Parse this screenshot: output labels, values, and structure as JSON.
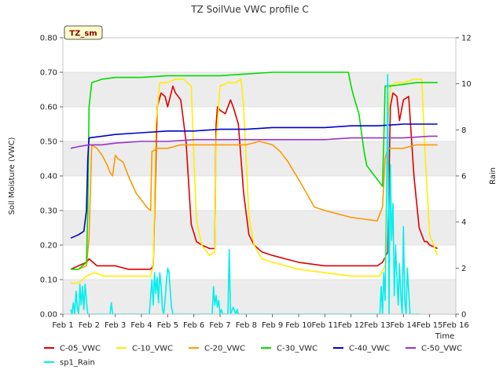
{
  "chart_data": {
    "type": "line",
    "title": "TZ SoilVue VWC profile C",
    "badge": "TZ_sm",
    "xlabel": "Time",
    "ylabel": "Soil Moisture (VWC)",
    "ylabel_right": "Rain",
    "xlim": [
      1,
      16
    ],
    "ylim": [
      0,
      0.8
    ],
    "ylim_right": [
      0,
      12
    ],
    "x_ticks": [
      1,
      2,
      3,
      4,
      5,
      6,
      7,
      8,
      9,
      10,
      11,
      12,
      13,
      14,
      15,
      16
    ],
    "x_tick_labels": [
      "Feb 1",
      "Feb 2",
      "Feb 3",
      "Feb 4",
      "Feb 5",
      "Feb 6",
      "Feb 7",
      "Feb 8",
      "Feb 9",
      "Feb 10",
      "Feb 11",
      "Feb 12",
      "Feb 13",
      "Feb 14",
      "Feb 15",
      "Feb 16"
    ],
    "y_ticks": [
      0,
      0.1,
      0.2,
      0.3,
      0.4,
      0.5,
      0.6,
      0.7,
      0.8
    ],
    "y_tick_labels": [
      "0.00",
      "0.10",
      "0.20",
      "0.30",
      "0.40",
      "0.50",
      "0.60",
      "0.70",
      "0.80"
    ],
    "y_ticks_right": [
      0,
      2,
      4,
      6,
      8,
      10,
      12
    ],
    "y_tick_labels_right": [
      "0",
      "2",
      "4",
      "6",
      "8",
      "10",
      "12"
    ],
    "series": [
      {
        "name": "C-05_VWC",
        "color": "#dd0000",
        "axis": "left",
        "x": [
          1.3,
          1.6,
          1.9,
          2.0,
          2.3,
          2.6,
          3.0,
          3.5,
          4.0,
          4.35,
          4.45,
          4.6,
          4.75,
          4.9,
          5.0,
          5.2,
          5.3,
          5.5,
          5.7,
          5.9,
          6.1,
          6.3,
          6.6,
          6.8,
          6.85,
          6.9,
          7.0,
          7.2,
          7.4,
          7.5,
          7.7,
          7.9,
          8.1,
          8.3,
          8.6,
          9.0,
          9.5,
          10.0,
          11.0,
          12.0,
          12.8,
          13.0,
          13.2,
          13.4,
          13.5,
          13.6,
          13.75,
          13.85,
          14.0,
          14.2,
          14.4,
          14.6,
          14.8,
          14.9,
          15.0,
          15.3
        ],
        "y": [
          0.13,
          0.14,
          0.15,
          0.16,
          0.14,
          0.14,
          0.14,
          0.13,
          0.13,
          0.13,
          0.14,
          0.6,
          0.64,
          0.63,
          0.6,
          0.66,
          0.64,
          0.62,
          0.5,
          0.26,
          0.21,
          0.2,
          0.19,
          0.19,
          0.55,
          0.6,
          0.59,
          0.58,
          0.62,
          0.6,
          0.55,
          0.35,
          0.23,
          0.2,
          0.18,
          0.17,
          0.16,
          0.15,
          0.14,
          0.14,
          0.14,
          0.14,
          0.15,
          0.18,
          0.6,
          0.64,
          0.63,
          0.56,
          0.62,
          0.63,
          0.4,
          0.25,
          0.21,
          0.21,
          0.2,
          0.19
        ]
      },
      {
        "name": "C-10_VWC",
        "color": "#ffee00",
        "axis": "left",
        "x": [
          1.3,
          1.6,
          1.9,
          2.2,
          2.6,
          3.0,
          3.5,
          4.0,
          4.35,
          4.45,
          4.55,
          4.7,
          5.0,
          5.3,
          5.6,
          5.9,
          6.0,
          6.1,
          6.3,
          6.6,
          6.8,
          6.85,
          7.0,
          7.3,
          7.6,
          7.8,
          7.9,
          8.1,
          8.3,
          8.6,
          9.0,
          9.5,
          10.0,
          11.0,
          12.0,
          12.8,
          13.1,
          13.3,
          13.4,
          13.5,
          13.7,
          14.0,
          14.4,
          14.7,
          14.8,
          15.0,
          15.3
        ],
        "y": [
          0.09,
          0.09,
          0.11,
          0.12,
          0.11,
          0.11,
          0.11,
          0.11,
          0.11,
          0.14,
          0.55,
          0.67,
          0.67,
          0.68,
          0.68,
          0.66,
          0.45,
          0.27,
          0.2,
          0.17,
          0.18,
          0.5,
          0.66,
          0.67,
          0.67,
          0.68,
          0.6,
          0.28,
          0.2,
          0.16,
          0.15,
          0.14,
          0.13,
          0.12,
          0.11,
          0.11,
          0.11,
          0.14,
          0.55,
          0.66,
          0.67,
          0.67,
          0.68,
          0.68,
          0.5,
          0.23,
          0.17
        ]
      },
      {
        "name": "C-20_VWC",
        "color": "#ff9900",
        "axis": "left",
        "x": [
          1.3,
          1.6,
          1.9,
          2.0,
          2.1,
          2.3,
          2.5,
          2.7,
          2.8,
          2.9,
          3.0,
          3.1,
          3.3,
          3.5,
          3.8,
          4.0,
          4.2,
          4.35,
          4.4,
          4.6,
          5.0,
          5.5,
          6.0,
          6.5,
          7.0,
          7.5,
          8.0,
          8.5,
          9.0,
          9.3,
          9.6,
          10.0,
          10.3,
          10.6,
          11.0,
          11.5,
          12.0,
          12.5,
          13.0,
          13.2,
          13.3,
          13.4,
          13.5,
          14.0,
          14.5,
          15.0,
          15.3
        ],
        "y": [
          0.13,
          0.13,
          0.14,
          0.22,
          0.49,
          0.48,
          0.46,
          0.43,
          0.41,
          0.4,
          0.46,
          0.45,
          0.44,
          0.4,
          0.35,
          0.33,
          0.31,
          0.3,
          0.47,
          0.48,
          0.48,
          0.49,
          0.49,
          0.49,
          0.49,
          0.49,
          0.49,
          0.5,
          0.49,
          0.47,
          0.44,
          0.39,
          0.35,
          0.31,
          0.3,
          0.29,
          0.28,
          0.275,
          0.27,
          0.31,
          0.45,
          0.48,
          0.48,
          0.48,
          0.49,
          0.49,
          0.49
        ]
      },
      {
        "name": "C-30_VWC",
        "color": "#00dd00",
        "axis": "left",
        "x": [
          1.3,
          1.6,
          1.9,
          1.95,
          2.0,
          2.1,
          2.5,
          3.0,
          4.0,
          5.0,
          6.0,
          7.0,
          8.0,
          9.0,
          10.0,
          11.0,
          11.9,
          12.0,
          12.1,
          12.3,
          12.5,
          12.6,
          12.8,
          13.0,
          13.2,
          13.25,
          13.3,
          13.5,
          14.0,
          14.5,
          15.0,
          15.3
        ],
        "y": [
          0.13,
          0.13,
          0.15,
          0.3,
          0.6,
          0.67,
          0.68,
          0.685,
          0.685,
          0.69,
          0.69,
          0.69,
          0.695,
          0.7,
          0.7,
          0.7,
          0.7,
          0.66,
          0.63,
          0.58,
          0.47,
          0.43,
          0.41,
          0.39,
          0.37,
          0.5,
          0.66,
          0.66,
          0.665,
          0.67,
          0.67,
          0.67
        ]
      },
      {
        "name": "C-40_VWC",
        "color": "#0000cc",
        "axis": "left",
        "x": [
          1.3,
          1.6,
          1.8,
          1.9,
          1.95,
          2.0,
          2.5,
          3.0,
          4.0,
          5.0,
          6.0,
          7.0,
          8.0,
          9.0,
          10.0,
          11.0,
          12.0,
          13.0,
          14.0,
          14.5,
          15.0,
          15.3
        ],
        "y": [
          0.22,
          0.23,
          0.24,
          0.3,
          0.45,
          0.51,
          0.515,
          0.52,
          0.525,
          0.53,
          0.53,
          0.535,
          0.535,
          0.54,
          0.54,
          0.54,
          0.545,
          0.545,
          0.55,
          0.55,
          0.55,
          0.55
        ]
      },
      {
        "name": "C-50_VWC",
        "color": "#9933cc",
        "axis": "left",
        "x": [
          1.3,
          1.6,
          2.0,
          2.5,
          3.0,
          4.0,
          5.0,
          6.0,
          7.0,
          8.0,
          9.0,
          10.0,
          11.0,
          12.0,
          13.0,
          14.0,
          15.0,
          15.3
        ],
        "y": [
          0.48,
          0.485,
          0.49,
          0.49,
          0.495,
          0.5,
          0.5,
          0.505,
          0.505,
          0.505,
          0.505,
          0.505,
          0.505,
          0.51,
          0.51,
          0.51,
          0.515,
          0.515
        ]
      },
      {
        "name": "sp1_Rain",
        "color": "#00eeee",
        "axis": "right",
        "x": [
          1.3,
          1.35,
          1.4,
          1.45,
          1.5,
          1.55,
          1.6,
          1.65,
          1.7,
          1.75,
          1.8,
          1.85,
          1.9,
          1.95,
          2.0,
          2.1,
          2.8,
          2.85,
          2.9,
          2.95,
          3.0,
          4.3,
          4.35,
          4.4,
          4.45,
          4.5,
          4.55,
          4.6,
          4.65,
          4.7,
          4.75,
          4.8,
          4.85,
          4.9,
          4.95,
          5.0,
          5.05,
          5.1,
          5.15,
          5.2,
          5.25,
          5.3,
          6.7,
          6.75,
          6.8,
          6.85,
          6.9,
          6.95,
          7.0,
          7.05,
          7.1,
          7.2,
          7.3,
          7.35,
          7.4,
          7.5,
          7.6,
          7.65,
          7.7,
          7.8,
          12.9,
          13.1,
          13.15,
          13.2,
          13.25,
          13.3,
          13.35,
          13.4,
          13.45,
          13.5,
          13.55,
          13.6,
          13.65,
          13.7,
          13.75,
          13.8,
          13.85,
          13.9,
          13.95,
          14.0,
          14.05,
          14.1,
          14.15,
          14.2,
          14.25,
          14.3,
          14.35,
          14.4,
          14.45,
          14.5,
          14.6
        ],
        "y": [
          0.2,
          0,
          0.5,
          0,
          1.0,
          0.3,
          0,
          1.3,
          0.4,
          1.2,
          0.2,
          1.3,
          0.6,
          0,
          0,
          0,
          0,
          0.5,
          0,
          0,
          0,
          0,
          0.8,
          1.5,
          0.4,
          1.8,
          0.9,
          1.6,
          0.5,
          1.8,
          1.2,
          0.2,
          0,
          0.6,
          1.4,
          2.0,
          1.8,
          1.0,
          0.3,
          0,
          0,
          0,
          0,
          1.2,
          0.4,
          0.8,
          0.3,
          0.6,
          0,
          0.2,
          0,
          0,
          0,
          2.8,
          0,
          0.3,
          0,
          0.2,
          0,
          0,
          0,
          0,
          1.2,
          0,
          1.8,
          0.6,
          4.5,
          10.4,
          0,
          6.5,
          3.2,
          4.8,
          0.8,
          3.0,
          1.6,
          0.4,
          2.2,
          0.8,
          0,
          3.8,
          0.6,
          0,
          2.0,
          1.0,
          0,
          0,
          0,
          0,
          0,
          0,
          0
        ]
      }
    ]
  }
}
